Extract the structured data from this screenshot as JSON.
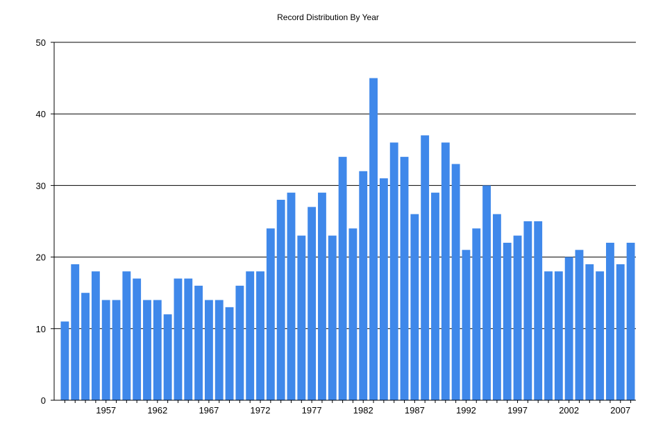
{
  "chart_data": {
    "type": "bar",
    "title": "Record Distribution By Year",
    "xlabel": "",
    "ylabel": "",
    "ylim": [
      0,
      50
    ],
    "yticks": [
      0,
      10,
      20,
      30,
      40,
      50
    ],
    "grid": "horizontal",
    "bar_color": "#3f88ea",
    "categories": [
      1953,
      1954,
      1955,
      1956,
      1957,
      1958,
      1959,
      1960,
      1961,
      1962,
      1963,
      1964,
      1965,
      1966,
      1967,
      1968,
      1969,
      1970,
      1971,
      1972,
      1973,
      1974,
      1975,
      1976,
      1977,
      1978,
      1979,
      1980,
      1981,
      1982,
      1983,
      1984,
      1985,
      1986,
      1987,
      1988,
      1989,
      1990,
      1991,
      1992,
      1993,
      1994,
      1995,
      1996,
      1997,
      1998,
      1999,
      2000,
      2001,
      2002,
      2003,
      2004,
      2005,
      2006,
      2007,
      2008
    ],
    "values": [
      11,
      19,
      15,
      18,
      14,
      14,
      18,
      17,
      14,
      14,
      12,
      17,
      17,
      16,
      14,
      14,
      13,
      16,
      18,
      18,
      24,
      28,
      29,
      23,
      27,
      29,
      23,
      34,
      24,
      32,
      45,
      31,
      36,
      34,
      26,
      37,
      29,
      36,
      33,
      21,
      24,
      30,
      26,
      22,
      23,
      25,
      25,
      18,
      18,
      20,
      21,
      19,
      18,
      22,
      19,
      22
    ],
    "xtick_labels": [
      "1957",
      "1962",
      "1967",
      "1972",
      "1977",
      "1982",
      "1987",
      "1992",
      "1997",
      "2002",
      "2007"
    ]
  }
}
